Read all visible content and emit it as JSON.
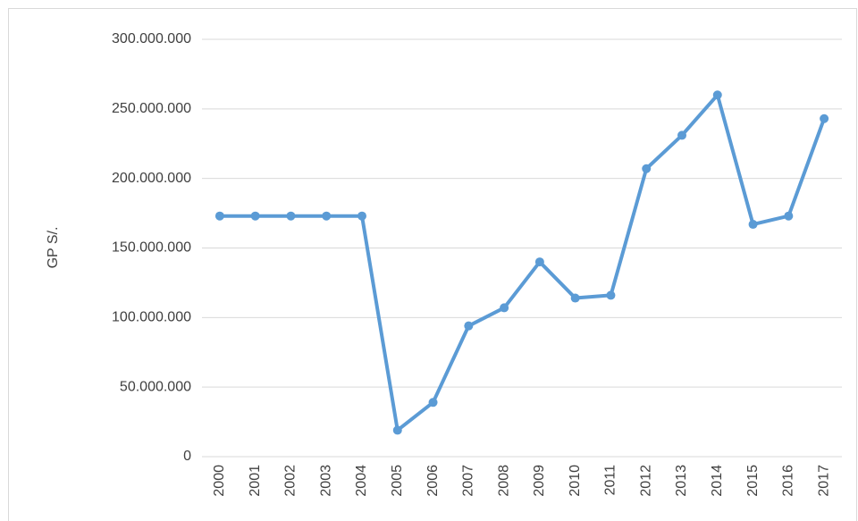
{
  "chart_data": {
    "type": "line",
    "y_label": "GP S/.",
    "categories": [
      "2000",
      "2001",
      "2002",
      "2003",
      "2004",
      "2005",
      "2006",
      "2007",
      "2008",
      "2009",
      "2010",
      "2011",
      "2012",
      "2013",
      "2014",
      "2015",
      "2016",
      "2017"
    ],
    "series": [
      {
        "color": "#5b9bd5",
        "values": [
          173000000,
          173000000,
          173000000,
          173000000,
          173000000,
          19000000,
          39000000,
          94000000,
          107000000,
          140000000,
          114000000,
          116000000,
          207000000,
          231000000,
          260000000,
          167000000,
          173000000,
          243000000
        ]
      }
    ],
    "ylim": [
      0,
      300000000
    ],
    "yticks": [
      0,
      {
        "value": 50000000,
        "label": "50.000.000"
      },
      {
        "value": 100000000,
        "label": "100.000.000"
      },
      {
        "value": 150000000,
        "label": "150.000.000"
      },
      {
        "value": 200000000,
        "label": "200.000.000"
      },
      {
        "value": 250000000,
        "label": "250.000.000"
      },
      {
        "value": 300000000,
        "label": "300.000.000"
      }
    ],
    "grid": true
  }
}
